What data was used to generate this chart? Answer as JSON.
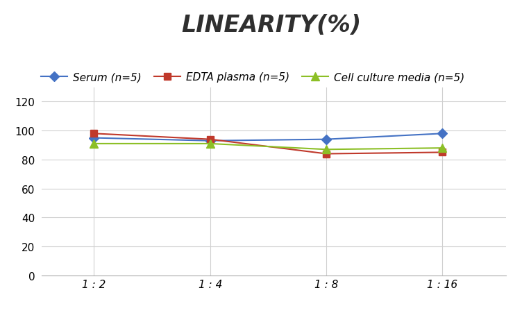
{
  "title": "LINEARITY(%)",
  "x_labels": [
    "1 : 2",
    "1 : 4",
    "1 : 8",
    "1 : 16"
  ],
  "x_positions": [
    1,
    2,
    3,
    4
  ],
  "series": [
    {
      "name": "Serum (n=5)",
      "values": [
        95,
        93,
        94,
        98
      ],
      "color": "#4472C4",
      "marker": "D",
      "marker_size": 7
    },
    {
      "name": "EDTA plasma (n=5)",
      "values": [
        98,
        94,
        84,
        85
      ],
      "color": "#C0392B",
      "marker": "s",
      "marker_size": 7
    },
    {
      "name": "Cell culture media (n=5)",
      "values": [
        91,
        91,
        87,
        88
      ],
      "color": "#8CBF26",
      "marker": "^",
      "marker_size": 8
    }
  ],
  "ylim": [
    0,
    130
  ],
  "yticks": [
    0,
    20,
    40,
    60,
    80,
    100,
    120
  ],
  "background_color": "#FFFFFF",
  "grid_color": "#D0D0D0",
  "title_fontsize": 24,
  "legend_fontsize": 11,
  "tick_fontsize": 11
}
